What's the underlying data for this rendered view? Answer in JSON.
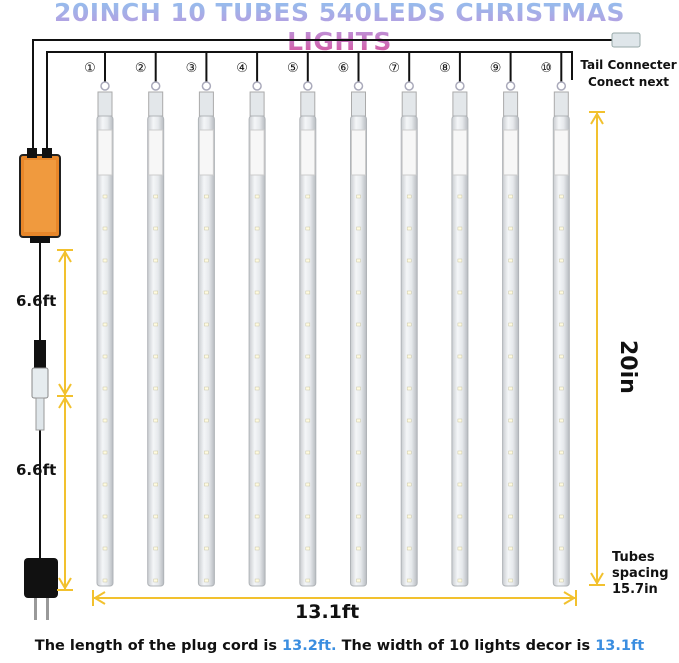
{
  "title": "20INCH 10 TUBES 540LEDS CHRISTMAS LIGHTS",
  "tail_connector": {
    "line1": "Tail Connecter",
    "line2": "Conect next"
  },
  "tube_numbers": [
    "①",
    "②",
    "③",
    "④",
    "⑤",
    "⑥",
    "⑦",
    "⑧",
    "⑨",
    "⑩"
  ],
  "dimensions": {
    "cord_segment_1": "6.6ft",
    "cord_segment_2": "6.6ft",
    "tube_length": "20in",
    "total_width": "13.1ft",
    "spacing_label_1": "Tubes",
    "spacing_label_2": "spacing",
    "spacing_value": "15.7in"
  },
  "footer": {
    "part1": "The length of the plug cord is ",
    "cord_length": "13.2ft.",
    "part2": " The width of 10 lights decor is ",
    "decor_width": "13.1ft"
  },
  "colors": {
    "accent_yellow": "#f2c12e",
    "adapter_orange": "#e8872a",
    "highlight_blue": "#3b8ee0"
  }
}
